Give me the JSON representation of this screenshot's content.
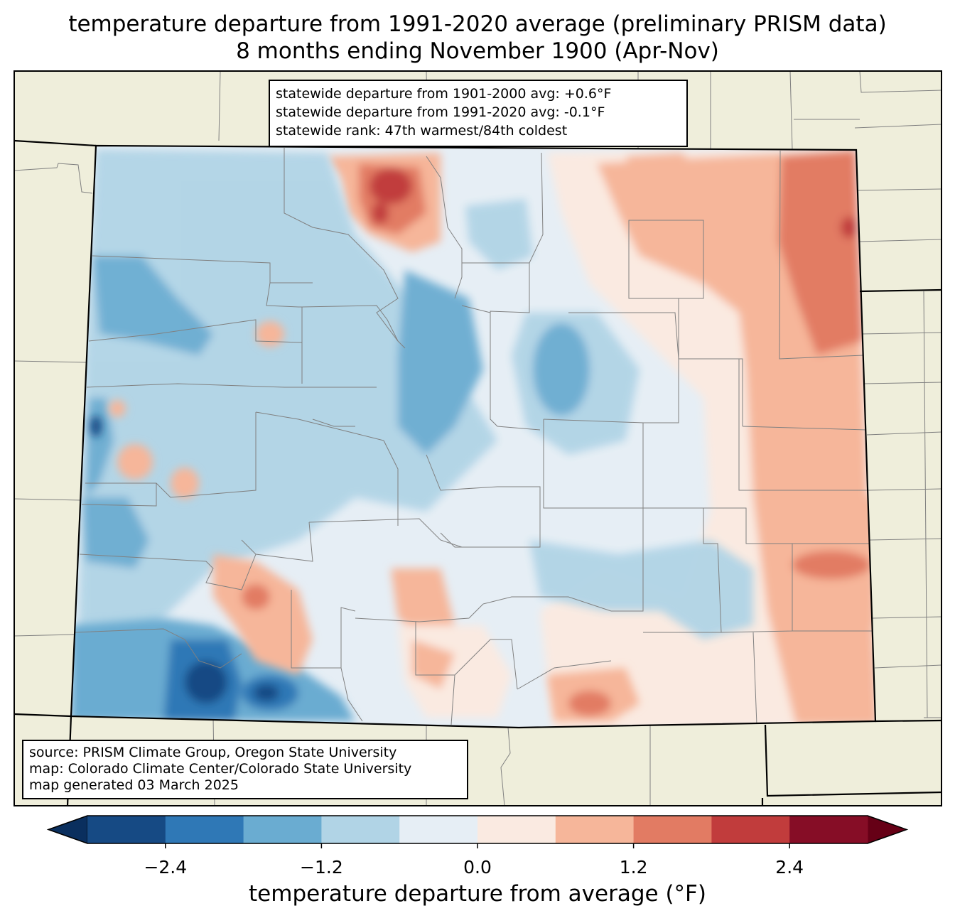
{
  "title": {
    "line1": "temperature departure from 1991-2020 average (preliminary PRISM data)",
    "line2": "8 months ending November 1900 (Apr-Nov)"
  },
  "stats": {
    "line1": "statewide departure from 1901-2000 avg: +0.6°F",
    "line2": "statewide departure from 1991-2020 avg: -0.1°F",
    "line3": "statewide rank: 47th warmest/84th coldest"
  },
  "source": {
    "line1": "source: PRISM Climate Group, Oregon State University",
    "line2": "map: Colorado Climate Center/Colorado State University",
    "line3": "map generated 03 March 2025"
  },
  "colorbar": {
    "label": "temperature departure from average (°F)",
    "ticks": [
      "−2.4",
      "−1.2",
      "0.0",
      "1.2",
      "2.4"
    ],
    "tick_values": [
      -2.4,
      -1.2,
      0.0,
      1.2,
      2.4
    ],
    "range": [
      -3.0,
      3.0
    ],
    "bounds": [
      -3.0,
      -2.4,
      -1.8,
      -1.2,
      -0.6,
      0.0,
      0.6,
      1.2,
      1.8,
      2.4,
      3.0
    ],
    "colors": [
      "#164a84",
      "#2f78b6",
      "#6aacd1",
      "#b1d4e6",
      "#e6eef5",
      "#faeae1",
      "#f6b69a",
      "#e27b63",
      "#c13c3c",
      "#860d26"
    ],
    "under_color": "#0a2f5e",
    "over_color": "#660016"
  },
  "map_colors": {
    "land": "#efeedb",
    "county_lines": "#808080",
    "borders": "#000000"
  }
}
